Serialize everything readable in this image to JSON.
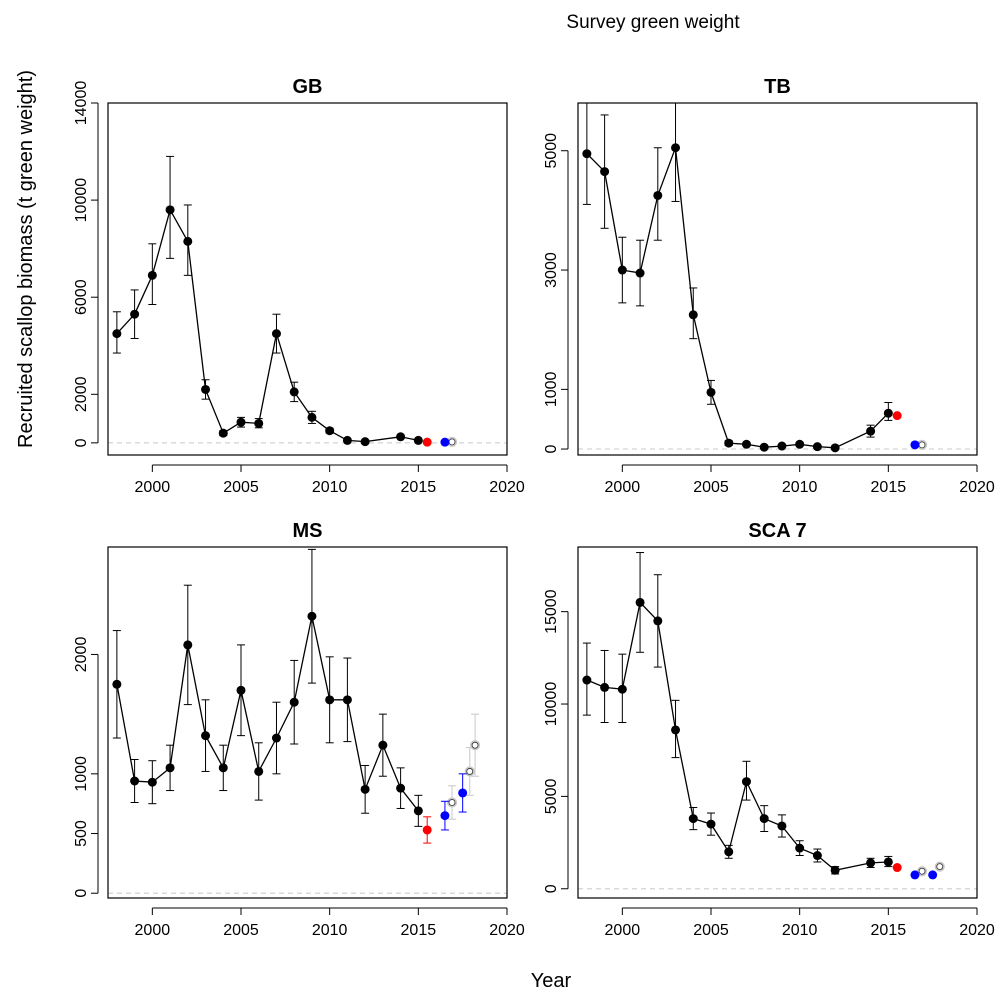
{
  "figure": {
    "title": "Survey green weight",
    "xlabel": "Year",
    "ylabel": "Recruited scallop biomass (t green weight)"
  },
  "colors": {
    "observed": "#000000",
    "highlight": "#ff0000",
    "forecast": "#0000ff",
    "projection": "#c8c8c8",
    "zero_line": "#d3d3d3"
  },
  "chart_data": [
    {
      "type": "scatter",
      "title": "GB",
      "xlim": [
        1997.5,
        2020
      ],
      "ylim": [
        -500,
        14000
      ],
      "xticks": [
        2000,
        2005,
        2010,
        2015,
        2020
      ],
      "yticks": [
        0,
        2000,
        6000,
        10000,
        14000
      ],
      "observed": {
        "x": [
          1998,
          1999,
          2000,
          2001,
          2002,
          2003,
          2004,
          2005,
          2006,
          2007,
          2008,
          2009,
          2010,
          2011,
          2012,
          2014,
          2015
        ],
        "y": [
          4500,
          5300,
          6900,
          9600,
          8300,
          2200,
          400,
          850,
          800,
          4500,
          2100,
          1050,
          500,
          100,
          50,
          250,
          100
        ],
        "lower": [
          3700,
          4300,
          5700,
          7600,
          6900,
          1800,
          300,
          650,
          620,
          3700,
          1700,
          800,
          400,
          50,
          20,
          180,
          60
        ],
        "upper": [
          5400,
          6300,
          8200,
          11800,
          9800,
          2600,
          500,
          1050,
          1000,
          5300,
          2500,
          1300,
          600,
          150,
          80,
          320,
          140
        ]
      },
      "highlight": {
        "x": [
          2015.5
        ],
        "y": [
          30
        ]
      },
      "forecast": {
        "x": [
          2016.5
        ],
        "y": [
          30
        ]
      },
      "projection": {
        "x": [
          2016.9
        ],
        "y": [
          40
        ]
      }
    },
    {
      "type": "scatter",
      "title": "TB",
      "xlim": [
        1997.5,
        2020
      ],
      "ylim": [
        -100,
        5800
      ],
      "xticks": [
        2000,
        2005,
        2010,
        2015,
        2020
      ],
      "yticks": [
        0,
        1000,
        3000,
        5000
      ],
      "observed": {
        "x": [
          1998,
          1999,
          2000,
          2001,
          2002,
          2003,
          2004,
          2005,
          2006,
          2007,
          2008,
          2009,
          2010,
          2011,
          2012,
          2014,
          2015
        ],
        "y": [
          4950,
          4650,
          3000,
          2950,
          4250,
          5050,
          2250,
          950,
          100,
          80,
          30,
          50,
          80,
          40,
          20,
          300,
          600
        ],
        "lower": [
          4100,
          3700,
          2450,
          2400,
          3500,
          4150,
          1850,
          750,
          60,
          50,
          10,
          30,
          50,
          20,
          10,
          200,
          480
        ],
        "upper": [
          5900,
          5600,
          3550,
          3500,
          5050,
          5950,
          2700,
          1150,
          140,
          110,
          50,
          70,
          110,
          60,
          30,
          400,
          780
        ]
      },
      "highlight": {
        "x": [
          2015.5
        ],
        "y": [
          560
        ]
      },
      "forecast": {
        "x": [
          2016.5
        ],
        "y": [
          70
        ]
      },
      "projection": {
        "x": [
          2016.9
        ],
        "y": [
          70
        ]
      }
    },
    {
      "type": "scatter",
      "title": "MS",
      "xlim": [
        1997.5,
        2020
      ],
      "ylim": [
        -40,
        2900
      ],
      "xticks": [
        2000,
        2005,
        2010,
        2015,
        2020
      ],
      "yticks": [
        0,
        500,
        1000,
        2000
      ],
      "observed": {
        "x": [
          1998,
          1999,
          2000,
          2001,
          2002,
          2003,
          2004,
          2005,
          2006,
          2007,
          2008,
          2009,
          2010,
          2011,
          2012,
          2013,
          2014,
          2015
        ],
        "y": [
          1750,
          940,
          930,
          1050,
          2080,
          1320,
          1050,
          1700,
          1020,
          1300,
          1600,
          2320,
          1620,
          1620,
          870,
          1240,
          880,
          690
        ],
        "lower": [
          1300,
          760,
          750,
          860,
          1580,
          1020,
          860,
          1320,
          780,
          1000,
          1250,
          1760,
          1260,
          1270,
          670,
          980,
          710,
          560
        ],
        "upper": [
          2200,
          1120,
          1110,
          1240,
          2580,
          1620,
          1240,
          2080,
          1260,
          1600,
          1950,
          2880,
          1980,
          1970,
          1070,
          1500,
          1050,
          820
        ]
      },
      "highlight": {
        "x": [
          2015.5
        ],
        "y": [
          530
        ],
        "lower": [
          420
        ],
        "upper": [
          640
        ]
      },
      "forecast": {
        "x": [
          2016.5,
          2017.5
        ],
        "y": [
          650,
          840
        ],
        "lower": [
          530,
          680
        ],
        "upper": [
          770,
          1000
        ]
      },
      "projection": {
        "x": [
          2016.9,
          2017.9,
          2018.2
        ],
        "y": [
          760,
          1020,
          1240
        ],
        "lower": [
          620,
          820,
          980
        ],
        "upper": [
          900,
          1220,
          1500
        ]
      }
    },
    {
      "type": "scatter",
      "title": "SCA 7",
      "xlim": [
        1997.5,
        2020
      ],
      "ylim": [
        -500,
        18500
      ],
      "xticks": [
        2000,
        2005,
        2010,
        2015,
        2020
      ],
      "yticks": [
        0,
        5000,
        10000,
        15000
      ],
      "observed": {
        "x": [
          1998,
          1999,
          2000,
          2001,
          2002,
          2003,
          2004,
          2005,
          2006,
          2007,
          2008,
          2009,
          2010,
          2011,
          2012,
          2014,
          2015
        ],
        "y": [
          11300,
          10900,
          10800,
          15500,
          14500,
          8600,
          3800,
          3500,
          2000,
          5800,
          3800,
          3400,
          2200,
          1800,
          1000,
          1400,
          1450
        ],
        "lower": [
          9400,
          9000,
          9000,
          12800,
          12000,
          7100,
          3200,
          2900,
          1650,
          4800,
          3100,
          2800,
          1800,
          1450,
          800,
          1150,
          1200
        ],
        "upper": [
          13300,
          12900,
          12700,
          18200,
          17000,
          10200,
          4400,
          4100,
          2350,
          6900,
          4500,
          4000,
          2600,
          2150,
          1200,
          1650,
          1750
        ]
      },
      "highlight": {
        "x": [
          2015.5
        ],
        "y": [
          1150
        ]
      },
      "forecast": {
        "x": [
          2016.5,
          2017.5
        ],
        "y": [
          750,
          750
        ]
      },
      "projection": {
        "x": [
          2016.9,
          2017.9
        ],
        "y": [
          950,
          1200
        ]
      }
    }
  ]
}
